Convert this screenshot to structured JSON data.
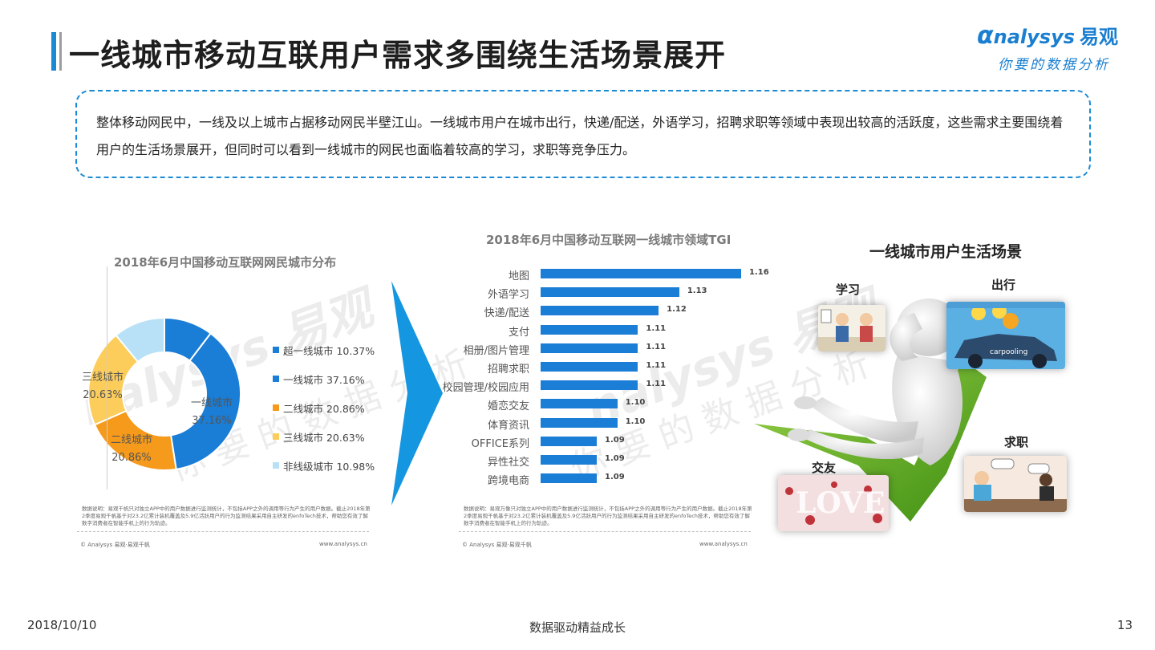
{
  "header": {
    "title": "一线城市移动互联用户需求多围绕生活场景展开",
    "logo_brand": "nalysys",
    "logo_cn": "易观",
    "logo_slogan": "你要的数据分析"
  },
  "summary": {
    "text": "整体移动网民中，一线及以上城市占据移动网民半壁江山。一线城市用户在城市出行，快递/配送，外语学习，招聘求职等领域中表现出较高的活跃度，这些需求主要围绕着用户的生活场景展开，但同时可以看到一线城市的网民也面临着较高的学习，求职等竞争压力。"
  },
  "donut_panel": {
    "note": "数据说明：易观千帆只对独立APP中的用户数据进行监测统计，不包括APP之外的调用等行为产生的用户数据。截止2018年第2季度易观千帆基于对23.2亿累计装机覆盖及5.9亿活跃用户的行为监测结果采用自主研发的enfoTech技术，帮助您有效了解数字消费者在智能手机上的行为轨迹。",
    "footer_left": "© Analysys 易观·易观千帆",
    "footer_right": "www.analysys.cn"
  },
  "bar_panel": {
    "note": "数据说明：易观万像只对独立APP中的用户数据进行监测统计，不包括APP之外的调用等行为产生的用户数据。截止2018年第2季度易观千帆基于对23.2亿累计装机覆盖及5.9亿活跃用户的行为监测结果采用自主研发的enfoTech技术，帮助您有效了解数字消费者在智能手机上的行为轨迹。",
    "footer_left": "© Analysys 易观·易观千帆",
    "footer_right": "www.analysys.cn"
  },
  "chart_data": [
    {
      "type": "pie",
      "title": "2018年6月中国移动互联网网民城市分布",
      "categories": [
        "超一线城市",
        "一线城市",
        "二线城市",
        "三线城市",
        "非线级城市"
      ],
      "values": [
        10.37,
        37.16,
        20.86,
        20.63,
        10.98
      ],
      "unit": "%",
      "colors": [
        "#1a7dd6",
        "#1a7dd6",
        "#f59a1b",
        "#fccd5a",
        "#b8e1f7"
      ],
      "slice_labels": [
        "",
        "一线城市\n37.16%",
        "二线城市\n20.86%",
        "三线城市\n20.63%",
        ""
      ],
      "legend": [
        "超一线城市 10.37%",
        "一线城市 37.16%",
        "二线城市 20.86%",
        "三线城市 20.63%",
        "非线级城市 10.98%"
      ],
      "legend_position": "right"
    },
    {
      "type": "bar",
      "orientation": "horizontal",
      "title": "2018年6月中国移动互联网一线城市领域TGI",
      "categories": [
        "地图",
        "外语学习",
        "快递/配送",
        "支付",
        "相册/图片管理",
        "招聘求职",
        "校园管理/校园应用",
        "婚恋交友",
        "体育资讯",
        "OFFICE系列",
        "异性社交",
        "跨境电商"
      ],
      "values": [
        1.16,
        1.13,
        1.12,
        1.11,
        1.11,
        1.11,
        1.11,
        1.1,
        1.1,
        1.09,
        1.09,
        1.09
      ],
      "value_labels": [
        "1.16",
        "1.13",
        "1.12",
        "1.11",
        "1.11",
        "1.11",
        "1.11",
        "1.10",
        "1.10",
        "1.09",
        "1.09",
        "1.09"
      ],
      "color": "#1a7dd6",
      "xlim": [
        1.0,
        1.16
      ]
    }
  ],
  "scene": {
    "title": "一线城市用户生活场景",
    "labels": {
      "study": "学习",
      "travel": "出行",
      "job": "求职",
      "dating": "交友"
    },
    "carpool_text": "carpooling",
    "love_text": "LOVE"
  },
  "watermark": {
    "brand": "nalysys 易观",
    "slogan": "你要的数据分析"
  },
  "footer": {
    "date": "2018/10/10",
    "center": "数据驱动精益成长",
    "page": "13"
  }
}
